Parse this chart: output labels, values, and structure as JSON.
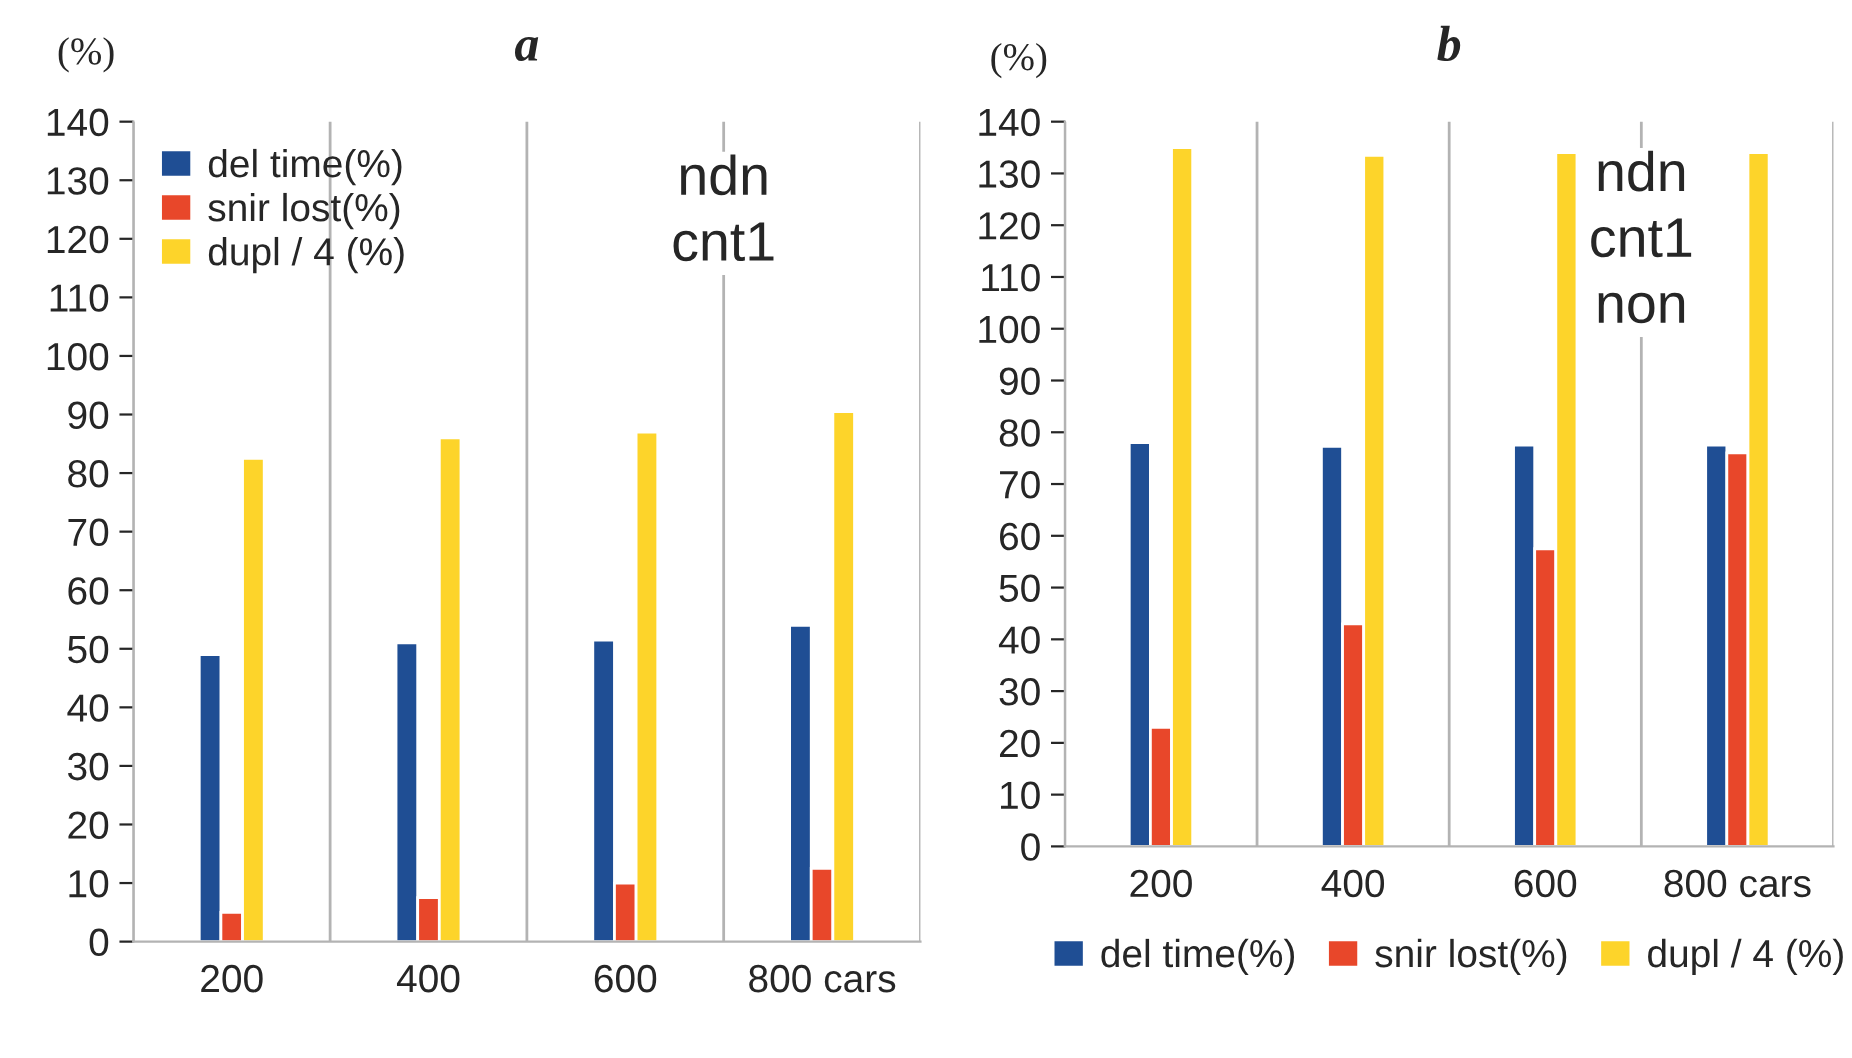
{
  "chart_data": [
    {
      "type": "bar",
      "title": "a",
      "ylabel": "(%)",
      "categories": [
        "200",
        "400",
        "600",
        "800 cars"
      ],
      "series": [
        {
          "name": "del time(%)",
          "color": "#1f4e94",
          "values": [
            49,
            51,
            51.5,
            54
          ]
        },
        {
          "name": "snir lost(%)",
          "color": "#e8472a",
          "values": [
            5,
            7.5,
            10,
            12.5
          ]
        },
        {
          "name": "dupl / 4 (%)",
          "color": "#fdd42a",
          "values": [
            82.5,
            86,
            87,
            90.5
          ]
        }
      ],
      "ylim": [
        0,
        140
      ],
      "yticks": [
        0,
        10,
        20,
        30,
        40,
        50,
        60,
        70,
        80,
        90,
        100,
        110,
        120,
        130,
        140
      ],
      "annotations": [
        "ndn\ncnt1"
      ],
      "grid": "x",
      "legend": "top left"
    },
    {
      "type": "bar",
      "title": "b",
      "ylabel": "(%)",
      "categories": [
        "200",
        "400",
        "600",
        "800 cars"
      ],
      "series": [
        {
          "name": "del time(%)",
          "color": "#1f4e94",
          "values": [
            78,
            77.3,
            77.5,
            77.5
          ]
        },
        {
          "name": "snir lost(%)",
          "color": "#e8472a",
          "values": [
            23,
            43,
            57.5,
            76
          ]
        },
        {
          "name": "dupl / 4 (%)",
          "color": "#fdd42a",
          "values": [
            135,
            133.5,
            134,
            134
          ]
        }
      ],
      "ylim": [
        0,
        140
      ],
      "yticks": [
        0,
        10,
        20,
        30,
        40,
        50,
        60,
        70,
        80,
        90,
        100,
        110,
        120,
        130,
        140
      ],
      "annotations": [
        "ndn\ncnt1\nnon"
      ],
      "grid": "x",
      "legend": "bottom"
    }
  ]
}
